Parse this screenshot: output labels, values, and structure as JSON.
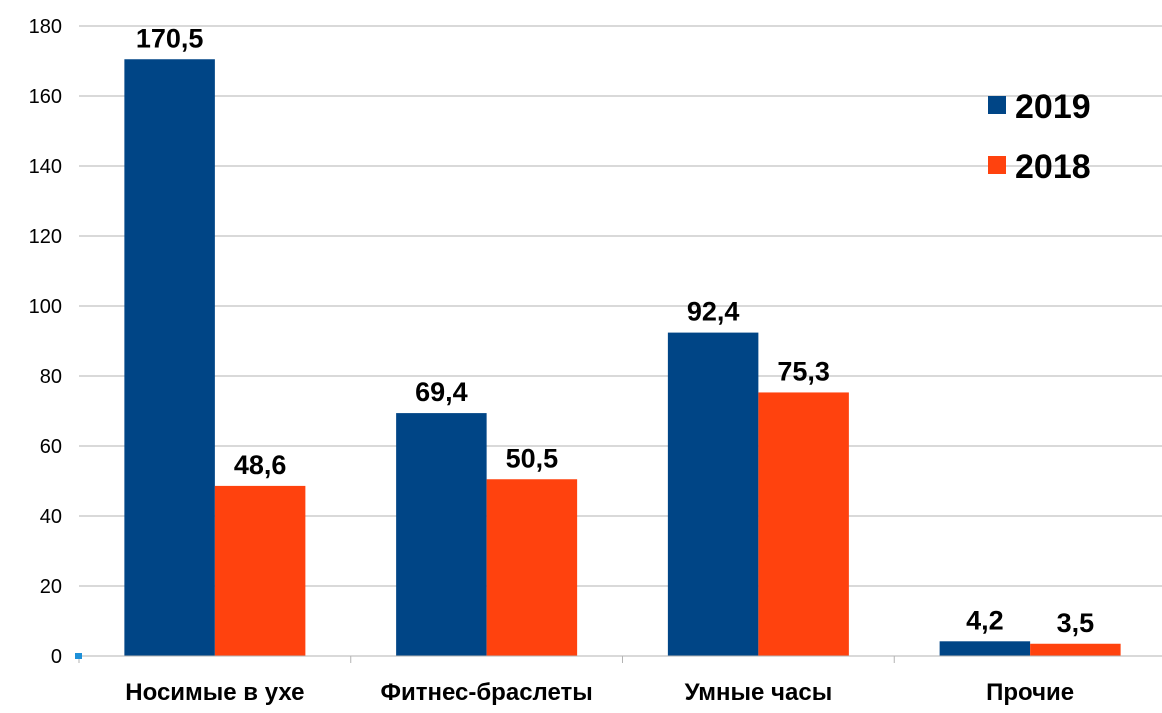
{
  "chart_data": {
    "type": "bar",
    "categories": [
      "Носимые в ухе",
      "Фитнес-браслеты",
      "Умные часы",
      "Прочие"
    ],
    "series": [
      {
        "name": "2019",
        "color": "#004586",
        "values": [
          170.5,
          69.4,
          92.4,
          4.2
        ],
        "labels": [
          "170,5",
          "69,4",
          "92,4",
          "4,2"
        ]
      },
      {
        "name": "2018",
        "color": "#ff420e",
        "values": [
          48.6,
          50.5,
          75.3,
          3.5
        ],
        "labels": [
          "48,6",
          "50,5",
          "75,3",
          "3,5"
        ]
      }
    ],
    "yticks": [
      "0",
      "20",
      "40",
      "60",
      "80",
      "100",
      "120",
      "140",
      "160",
      "180"
    ],
    "ylim": [
      0,
      180
    ],
    "grid": true,
    "legend_position": "top-right",
    "gridline_color": "#b3b3b3",
    "marker_color": "#1e90d8"
  }
}
